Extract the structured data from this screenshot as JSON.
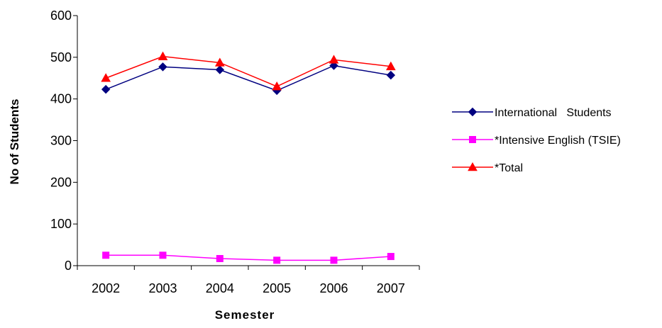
{
  "chart_data": {
    "type": "line",
    "categories": [
      "2002",
      "2003",
      "2004",
      "2005",
      "2006",
      "2007"
    ],
    "series": [
      {
        "name": "International   Students",
        "values": [
          423,
          477,
          470,
          420,
          480,
          457
        ],
        "color": "#000080",
        "marker": "diamond"
      },
      {
        "name": "*Intensive English (TSIE)",
        "values": [
          25,
          25,
          17,
          13,
          13,
          22
        ],
        "color": "#FF00FF",
        "marker": "square"
      },
      {
        "name": "*Total",
        "values": [
          450,
          502,
          487,
          430,
          494,
          478
        ],
        "color": "#FF0000",
        "marker": "triangle"
      }
    ],
    "xlabel": "Semester",
    "ylabel": "No of Students",
    "ylim": [
      0,
      600
    ],
    "yticks": [
      "0",
      "100",
      "200",
      "300",
      "400",
      "500",
      "600"
    ],
    "legend_position": "right",
    "grid": false
  }
}
